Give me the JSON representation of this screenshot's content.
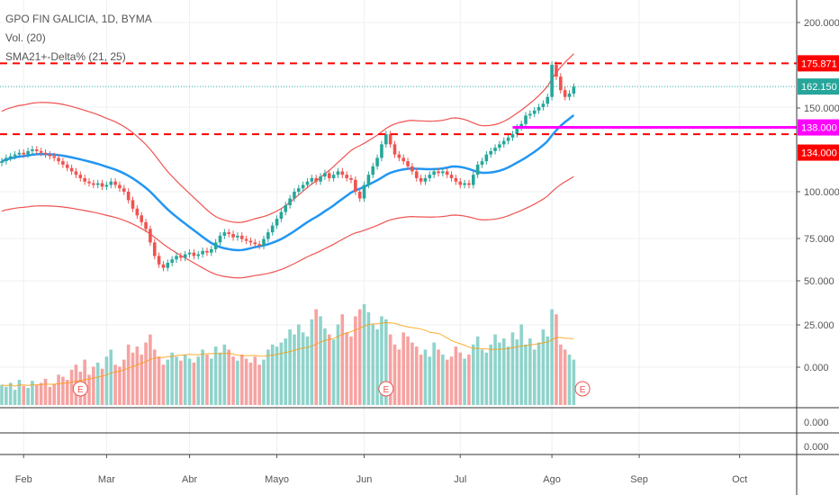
{
  "legend": {
    "title": "GPO FIN GALICIA, 1D, BYMA",
    "volume": "Vol. (20)",
    "indicator": "SMA21+-Delta% (21, 25)"
  },
  "chart_data": {
    "type": "candlestick",
    "title": "GPO FIN GALICIA, 1D, BYMA",
    "price_ticks": [
      "200.000",
      "150.000",
      "100.000",
      "75.000",
      "50.000",
      "25.000",
      "0.000"
    ],
    "price_tick_values": [
      200,
      150,
      100,
      75,
      50,
      25,
      0
    ],
    "sub_pane_ticks": [
      "0.000",
      "0.000"
    ],
    "month_labels": [
      "Feb",
      "Mar",
      "Abr",
      "Mayo",
      "Jun",
      "Jul",
      "Ago",
      "Sep",
      "Oct"
    ],
    "month_start_index": [
      5,
      24,
      43,
      63,
      83,
      105,
      126,
      146,
      169
    ],
    "closes": [
      118,
      120,
      121,
      122,
      123,
      122,
      124,
      125,
      124,
      123,
      122,
      121,
      120,
      118,
      116,
      114,
      112,
      110,
      108,
      106,
      105,
      104,
      105,
      103,
      104,
      106,
      104,
      102,
      100,
      95,
      90,
      86,
      82,
      78,
      70,
      62,
      57,
      55,
      58,
      60,
      62,
      61,
      63,
      64,
      62,
      63,
      65,
      64,
      66,
      70,
      74,
      76,
      75,
      73,
      74,
      72,
      71,
      70,
      69,
      68,
      72,
      76,
      80,
      84,
      88,
      92,
      96,
      100,
      102,
      104,
      106,
      108,
      106,
      109,
      111,
      108,
      110,
      112,
      110,
      108,
      107,
      100,
      96,
      104,
      110,
      115,
      120,
      128,
      134,
      128,
      122,
      120,
      118,
      115,
      112,
      108,
      106,
      108,
      110,
      112,
      111,
      112,
      110,
      108,
      106,
      104,
      105,
      104,
      110,
      116,
      118,
      122,
      124,
      126,
      128,
      130,
      132,
      134,
      138,
      140,
      145,
      146,
      148,
      150,
      152,
      156,
      175,
      168,
      160,
      156,
      158,
      162
    ],
    "volumes": [
      20,
      18,
      22,
      15,
      25,
      19,
      17,
      24,
      20,
      22,
      26,
      18,
      21,
      30,
      28,
      25,
      35,
      40,
      33,
      45,
      30,
      38,
      42,
      36,
      48,
      55,
      40,
      38,
      45,
      60,
      52,
      58,
      50,
      62,
      70,
      55,
      48,
      40,
      45,
      52,
      48,
      44,
      50,
      46,
      42,
      48,
      55,
      50,
      46,
      58,
      52,
      60,
      55,
      48,
      44,
      50,
      46,
      42,
      48,
      40,
      45,
      55,
      60,
      58,
      62,
      66,
      75,
      70,
      80,
      72,
      68,
      85,
      95,
      88,
      76,
      70,
      65,
      80,
      90,
      72,
      68,
      88,
      95,
      100,
      92,
      80,
      75,
      88,
      85,
      70,
      60,
      55,
      72,
      68,
      62,
      58,
      50,
      55,
      48,
      62,
      55,
      50,
      45,
      48,
      58,
      52,
      46,
      50,
      60,
      68,
      55,
      52,
      60,
      70,
      62,
      66,
      58,
      72,
      65,
      80,
      60,
      66,
      55,
      62,
      75,
      68,
      95,
      90,
      60,
      55,
      50,
      45
    ],
    "sma_period": 21,
    "delta_pct": 25,
    "hlines": [
      {
        "label": "175.871",
        "value": 175.871,
        "color": "#ff0000",
        "style": "dashed"
      },
      {
        "label": "162.150",
        "value": 162.15,
        "color": "#26a69a",
        "style": "dotted"
      },
      {
        "label": "138.000",
        "value": 138,
        "color": "#ff00ff",
        "style": "solid"
      },
      {
        "label": "134.000",
        "value": 134,
        "color": "#ff0000",
        "style": "dashed"
      }
    ],
    "earnings_markers": {
      "label": "E",
      "indices": [
        18,
        88,
        133
      ]
    },
    "colors": {
      "up": "#26a69a",
      "down": "#ef5350",
      "sma": "#2196f3",
      "bands": "#ef5350",
      "vol_ma": "#ff9800"
    }
  }
}
